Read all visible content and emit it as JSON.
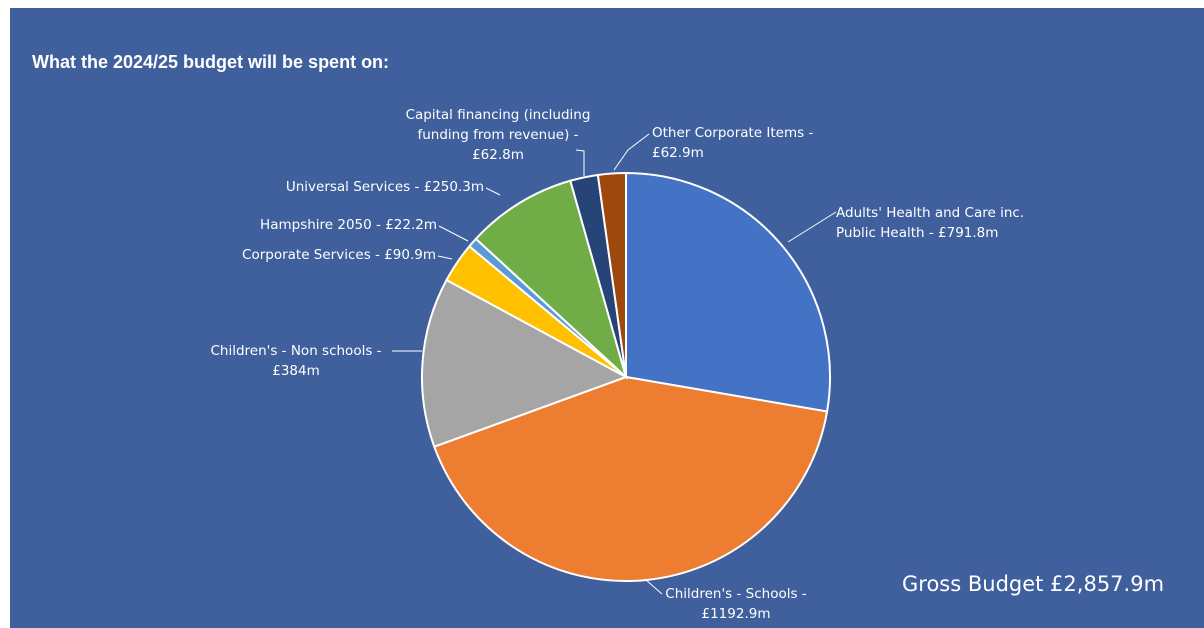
{
  "title": "What the 2024/25 budget will be spent on:",
  "total_label": "Gross Budget £2,857.9m",
  "chart_data": {
    "type": "pie",
    "title": "What the 2024/25 budget will be spent on:",
    "start": "12 o'clock, clockwise",
    "slices": [
      {
        "key": "adults",
        "name": "Adults' Health and Care inc. Public Health",
        "value": 791.8,
        "label_lines": [
          "Adults' Health and Care inc.",
          "Public Health - £791.8m"
        ],
        "color": "#4472c4"
      },
      {
        "key": "schools",
        "name": "Children's - Schools",
        "value": 1192.9,
        "label_lines": [
          "Children's - Schools -",
          "£1192.9m"
        ],
        "color": "#ed7d31"
      },
      {
        "key": "nonschools",
        "name": "Children's - Non schools",
        "value": 384,
        "label_lines": [
          "Children's - Non schools -",
          "£384m"
        ],
        "color": "#a5a5a5"
      },
      {
        "key": "corporate",
        "name": "Corporate Services",
        "value": 90.9,
        "label_lines": [
          "Corporate Services  - £90.9m"
        ],
        "color": "#ffc000"
      },
      {
        "key": "hampshire",
        "name": "Hampshire 2050",
        "value": 22.2,
        "label_lines": [
          "Hampshire 2050 - £22.2m"
        ],
        "color": "#5b9bd5"
      },
      {
        "key": "universal",
        "name": "Universal Services",
        "value": 250.3,
        "label_lines": [
          "Universal Services - £250.3m"
        ],
        "color": "#70ad47"
      },
      {
        "key": "capital",
        "name": "Capital financing (including funding from revenue)",
        "value": 62.8,
        "label_lines": [
          "Capital financing (including",
          "funding from revenue) -",
          "£62.8m"
        ],
        "color": "#264478"
      },
      {
        "key": "other",
        "name": "Other Corporate Items",
        "value": 62.9,
        "label_lines": [
          "Other Corporate Items -",
          "£62.9m"
        ],
        "color": "#9e480e"
      }
    ]
  }
}
